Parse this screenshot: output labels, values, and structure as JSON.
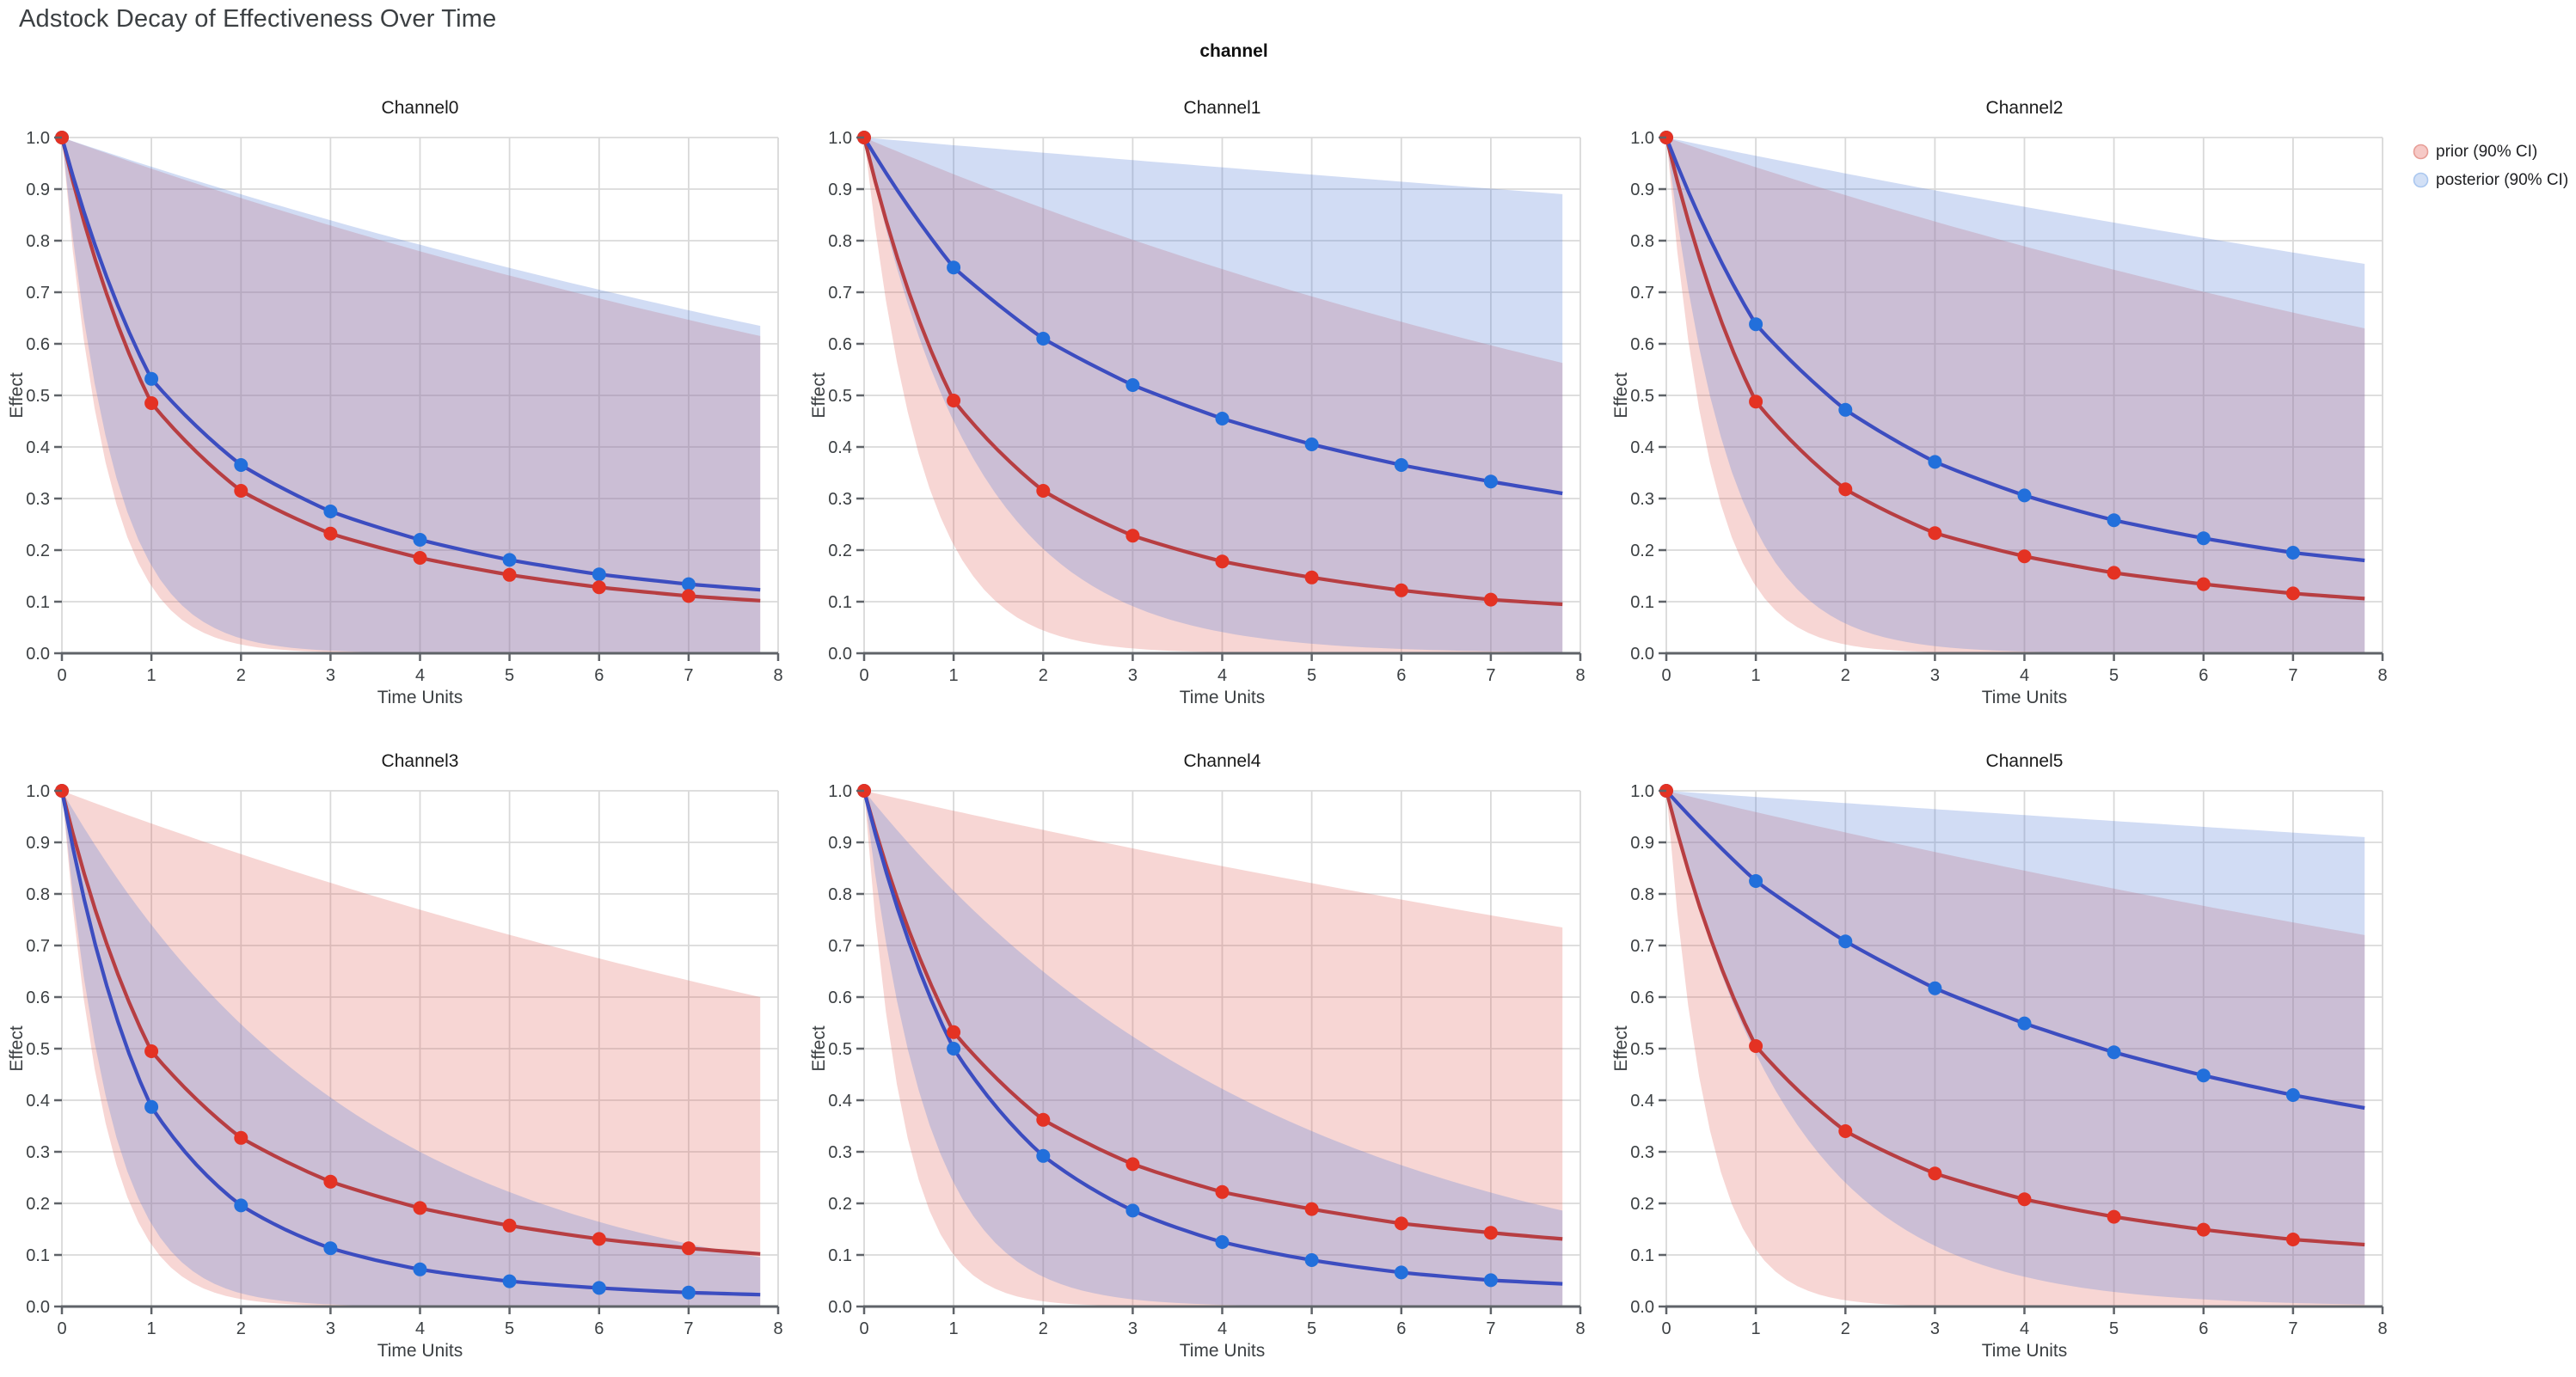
{
  "chart_data": {
    "type": "line",
    "title": "Adstock Decay of Effectiveness Over Time",
    "facet_title": "channel",
    "xlabel": "Time Units",
    "ylabel": "Effect",
    "xlim": [
      0,
      8
    ],
    "ylim": [
      0,
      1
    ],
    "x_ticks": [
      0,
      1,
      2,
      3,
      4,
      5,
      6,
      7,
      8
    ],
    "x_tick_labels": [
      "0",
      "1",
      "2",
      "3",
      "4",
      "5",
      "6",
      "7",
      "8"
    ],
    "y_ticks": [
      0.0,
      0.1,
      0.2,
      0.3,
      0.4,
      0.5,
      0.6,
      0.7,
      0.8,
      0.9,
      1.0
    ],
    "y_tick_labels": [
      "0.0",
      "0.1",
      "0.2",
      "0.3",
      "0.4",
      "0.5",
      "0.6",
      "0.7",
      "0.8",
      "0.9",
      "1.0"
    ],
    "grid": true,
    "marker_x": [
      0,
      1,
      2,
      3,
      4,
      5,
      6,
      7
    ],
    "curve_x_end": 7.8,
    "legend_position": "top-right-outside",
    "legend": [
      {
        "label": "prior (90% CI)",
        "swatch_fill": "#f6c9c6",
        "swatch_stroke": "#e79d96"
      },
      {
        "label": "posterior (90% CI)",
        "swatch_fill": "#d2e0f6",
        "swatch_stroke": "#aac7ef"
      }
    ],
    "colors": {
      "prior_line": "#b73e42",
      "prior_marker": "#e43223",
      "posterior_line": "#3c4dc0",
      "posterior_marker": "#226fdb",
      "prior_band": "rgba(226,106,100,0.28)",
      "posterior_band": "rgba(88,129,216,0.28)",
      "gridline": "#d9d9d9",
      "axis": "#5f6368",
      "tick_label": "#3c4043",
      "subplot_title": "#1a1a1a"
    },
    "channels": [
      {
        "name": "Channel0",
        "prior": {
          "mean": [
            1.0,
            0.485,
            0.315,
            0.232,
            0.185,
            0.152,
            0.128,
            0.111
          ],
          "end_value": 0.102,
          "ci_low_decay": 0.13,
          "ci_high_decay": 0.9396
        },
        "posterior": {
          "mean": [
            1.0,
            0.532,
            0.365,
            0.275,
            0.22,
            0.181,
            0.153,
            0.134
          ],
          "end_value": 0.123,
          "ci_low_decay": 0.17,
          "ci_high_decay": 0.9434
        }
      },
      {
        "name": "Channel1",
        "prior": {
          "mean": [
            1.0,
            0.49,
            0.315,
            0.228,
            0.178,
            0.147,
            0.122,
            0.104
          ],
          "end_value": 0.095,
          "ci_low_decay": 0.21,
          "ci_high_decay": 0.929
        },
        "posterior": {
          "mean": [
            1.0,
            0.748,
            0.61,
            0.52,
            0.455,
            0.405,
            0.365,
            0.333
          ],
          "end_value": 0.31,
          "ci_low_decay": 0.45,
          "ci_high_decay": 0.9852
        }
      },
      {
        "name": "Channel2",
        "prior": {
          "mean": [
            1.0,
            0.488,
            0.318,
            0.233,
            0.188,
            0.156,
            0.134,
            0.116
          ],
          "end_value": 0.106,
          "ci_low_decay": 0.13,
          "ci_high_decay": 0.9425
        },
        "posterior": {
          "mean": [
            1.0,
            0.638,
            0.472,
            0.371,
            0.306,
            0.258,
            0.223,
            0.195
          ],
          "end_value": 0.18,
          "ci_low_decay": 0.24,
          "ci_high_decay": 0.9646
        }
      },
      {
        "name": "Channel3",
        "prior": {
          "mean": [
            1.0,
            0.495,
            0.327,
            0.242,
            0.191,
            0.157,
            0.131,
            0.113
          ],
          "end_value": 0.102,
          "ci_low_decay": 0.12,
          "ci_high_decay": 0.9366
        },
        "posterior": {
          "mean": [
            1.0,
            0.387,
            0.196,
            0.113,
            0.072,
            0.049,
            0.036,
            0.027
          ],
          "end_value": 0.023,
          "ci_low_decay": 0.16,
          "ci_high_decay": 0.74
        }
      },
      {
        "name": "Channel4",
        "prior": {
          "mean": [
            1.0,
            0.532,
            0.362,
            0.276,
            0.222,
            0.189,
            0.161,
            0.143
          ],
          "end_value": 0.131,
          "ci_low_decay": 0.1,
          "ci_high_decay": 0.9613
        },
        "posterior": {
          "mean": [
            1.0,
            0.5,
            0.292,
            0.186,
            0.125,
            0.09,
            0.066,
            0.051
          ],
          "end_value": 0.044,
          "ci_low_decay": 0.24,
          "ci_high_decay": 0.806
        }
      },
      {
        "name": "Channel5",
        "prior": {
          "mean": [
            1.0,
            0.505,
            0.34,
            0.258,
            0.208,
            0.174,
            0.149,
            0.13
          ],
          "end_value": 0.12,
          "ci_low_decay": 0.11,
          "ci_high_decay": 0.9588
        },
        "posterior": {
          "mean": [
            1.0,
            0.825,
            0.708,
            0.617,
            0.549,
            0.493,
            0.448,
            0.41
          ],
          "end_value": 0.385,
          "ci_low_decay": 0.49,
          "ci_high_decay": 0.988
        }
      }
    ]
  }
}
